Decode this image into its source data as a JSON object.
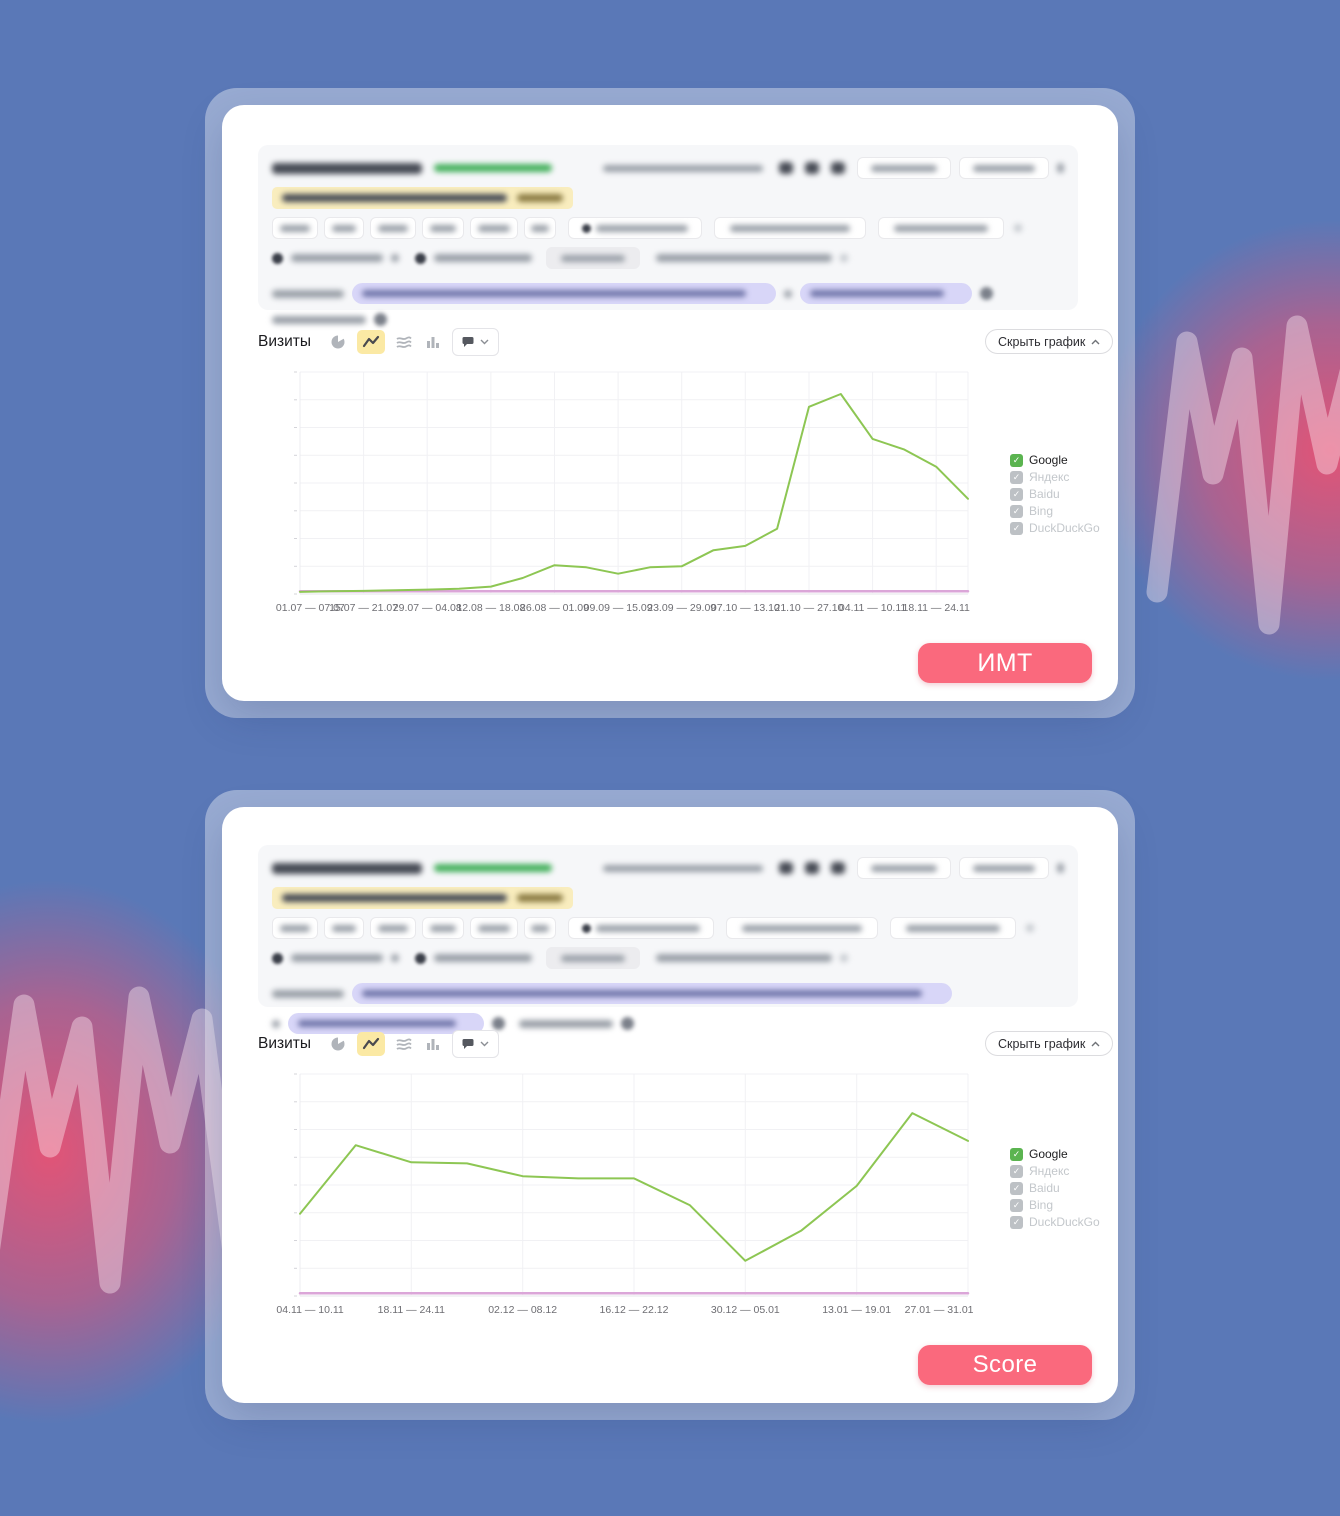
{
  "colors": {
    "background_blue": "#5a78b7",
    "decor_pink": "#e95273",
    "accent_pink_button": "#fa697d",
    "series_google_green": "#8dc653",
    "series_yandex_pink": "#dba6d8",
    "selected_chart_type_bg": "#fbe9a4"
  },
  "cards": [
    {
      "toolbar": {
        "metric_label": "Визиты",
        "hide_chart_label": "Скрыть график"
      },
      "legend": [
        {
          "label": "Google",
          "checked": true,
          "active": true
        },
        {
          "label": "Яндекс",
          "checked": true,
          "active": false
        },
        {
          "label": "Baidu",
          "checked": true,
          "active": false
        },
        {
          "label": "Bing",
          "checked": true,
          "active": false
        },
        {
          "label": "DuckDuckGo",
          "checked": true,
          "active": false
        }
      ],
      "chart_data": {
        "type": "line",
        "x_tick_labels": [
          "01.07 — 07.07",
          "15.07 — 21.07",
          "29.07 — 04.08",
          "12.08 — 18.08",
          "26.08 — 01.09",
          "09.09 — 15.09",
          "23.09 — 29.09",
          "07.10 — 13.10",
          "21.10 — 27.10",
          "04.11 — 10.11",
          "18.11 — 24.11"
        ],
        "x_interval": "weekly points, tick label every second point",
        "series": [
          {
            "name": "Google",
            "color": "#8dc653",
            "values": [
              0.5,
              0.8,
              1,
              1.3,
              1.6,
              2,
              3,
              7,
              13,
              12,
              9,
              12,
              12.5,
              20,
              22,
              30,
              87,
              93,
              72,
              67,
              59,
              44
            ]
          },
          {
            "name": "Яндекс",
            "color": "#dba6d8",
            "values": [
              0.8,
              0.8,
              0.8,
              0.8,
              0.8,
              0.8,
              0.8,
              0.8,
              0.8,
              0.8,
              0.8,
              0.8,
              0.8,
              0.8,
              0.8,
              0.8,
              0.8,
              0.8,
              0.8,
              0.8,
              0.8,
              0.8
            ]
          }
        ],
        "ylim": [
          0,
          100
        ],
        "y_axis_labels": "hidden (relative scale)",
        "grid": true,
        "legend_position": "right"
      },
      "cta_label": "ИМТ"
    },
    {
      "toolbar": {
        "metric_label": "Визиты",
        "hide_chart_label": "Скрыть график"
      },
      "legend": [
        {
          "label": "Google",
          "checked": true,
          "active": true
        },
        {
          "label": "Яндекс",
          "checked": true,
          "active": false
        },
        {
          "label": "Baidu",
          "checked": true,
          "active": false
        },
        {
          "label": "Bing",
          "checked": true,
          "active": false
        },
        {
          "label": "DuckDuckGo",
          "checked": true,
          "active": false
        }
      ],
      "chart_data": {
        "type": "line",
        "x_tick_labels": [
          "04.11 — 10.11",
          "18.11 — 24.11",
          "02.12 — 08.12",
          "16.12 — 22.12",
          "30.12 — 05.01",
          "13.01 — 19.01",
          "27.01 — 31.01"
        ],
        "x_interval": "weekly points, tick label every second point",
        "series": [
          {
            "name": "Google",
            "color": "#8dc653",
            "values": [
              38,
              70,
              62,
              61.5,
              55.5,
              54.5,
              54.5,
              42,
              16,
              30,
              51,
              85,
              72
            ]
          },
          {
            "name": "Яндекс",
            "color": "#dba6d8",
            "values": [
              0.8,
              0.8,
              0.8,
              0.8,
              0.8,
              0.8,
              0.8,
              0.8,
              0.8,
              0.8,
              0.8,
              0.8,
              0.8
            ]
          }
        ],
        "ylim": [
          0,
          100
        ],
        "y_axis_labels": "hidden (relative scale)",
        "grid": true,
        "legend_position": "right"
      },
      "cta_label": "Score"
    }
  ]
}
